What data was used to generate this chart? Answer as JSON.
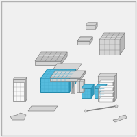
{
  "bg_color": "#f0f0f0",
  "border_color": "#b0b0b0",
  "highlight_color": "#55bbdd",
  "highlight_edge": "#2288aa",
  "highlight_dark": "#3399bb",
  "part_color": "#d4d4d4",
  "part_edge": "#808080",
  "part_dark": "#b8b8b8",
  "line_color": "#999999",
  "grid_color": "#44aacc",
  "white_color": "#f8f8f8"
}
